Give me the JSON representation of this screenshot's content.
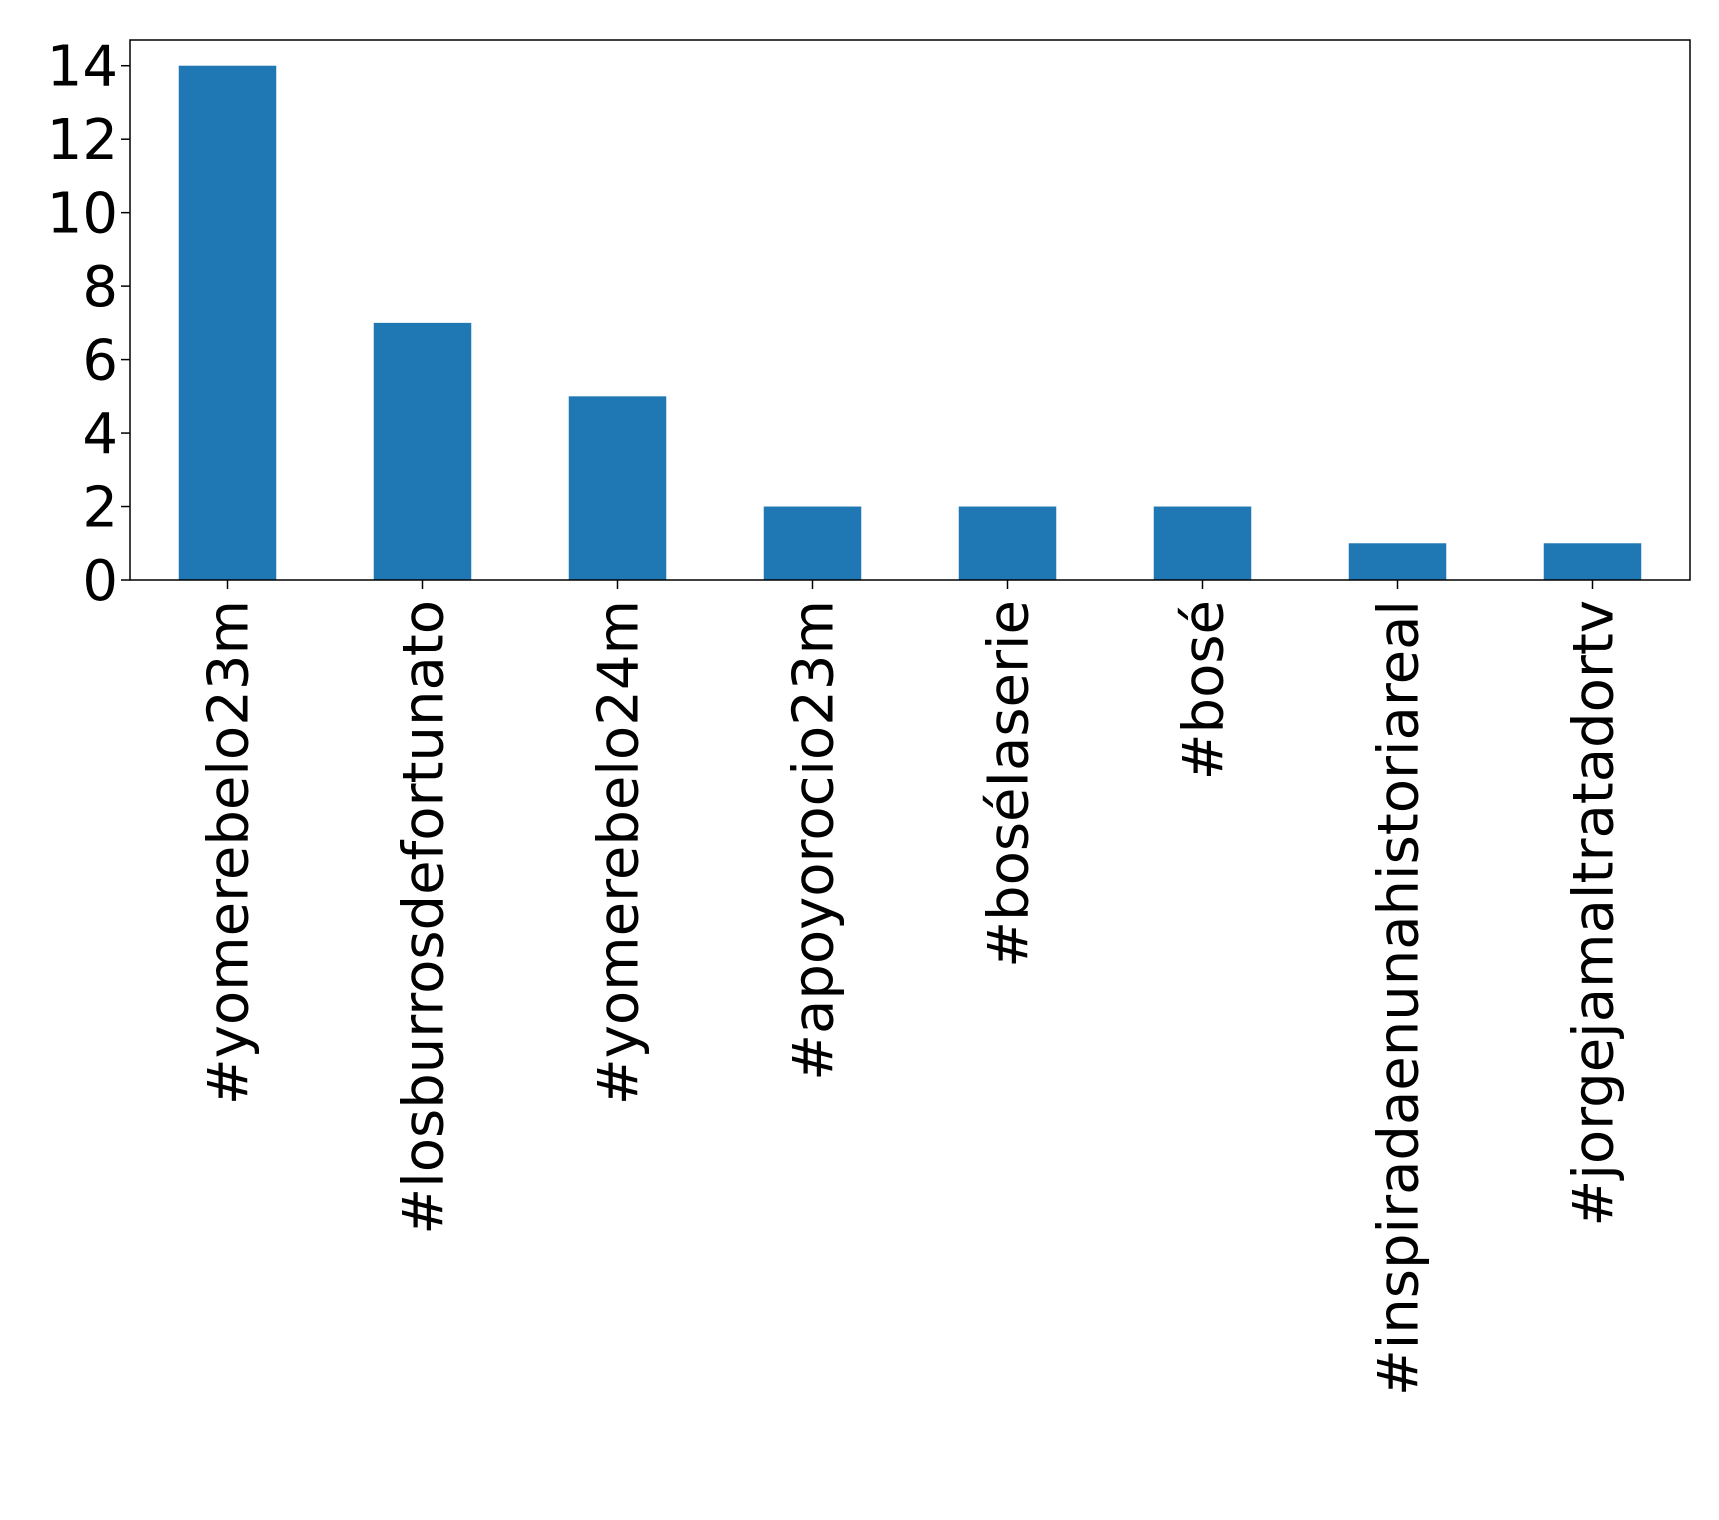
{
  "chart_data": {
    "type": "bar",
    "title": "",
    "xlabel": "",
    "ylabel": "",
    "categories": [
      "#yomerebelo23m",
      "#losburrosdefortunato",
      "#yomerebelo24m",
      "#apoyorocio23m",
      "#boséIaserie",
      "#bosé",
      "#inspiradaenunahistoriareal",
      "#jorgejamaltratadortv"
    ],
    "values": [
      14,
      7,
      5,
      2,
      2,
      2,
      1,
      1
    ],
    "ylim": [
      0,
      14.7
    ],
    "yticks": [
      0,
      2,
      4,
      6,
      8,
      10,
      12,
      14
    ],
    "grid": false,
    "legend": "none",
    "bar_color": "#1f77b4"
  }
}
